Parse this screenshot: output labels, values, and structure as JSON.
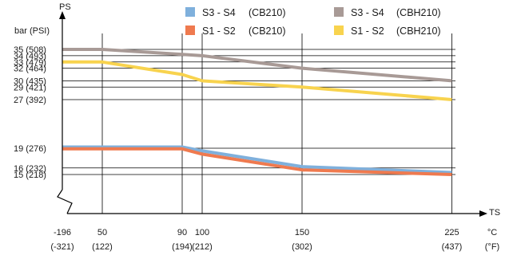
{
  "chart_data": {
    "type": "line",
    "title": "",
    "ylabel": "PS",
    "y_unit_label": "bar (PSI)",
    "xlabel": "TS",
    "x_unit_label_c": "°C",
    "x_unit_label_f": "(°F)",
    "xlim": [
      -196,
      225
    ],
    "ylim": [
      0,
      40
    ],
    "grid": true,
    "legend_position": "top",
    "x_ticks": [
      {
        "value": -196,
        "c": "-196",
        "f": "(-321)"
      },
      {
        "value": 50,
        "c": "50",
        "f": "(122)"
      },
      {
        "value": 90,
        "c": "90",
        "f": "(194)"
      },
      {
        "value": 100,
        "c": "100",
        "f": "(212)"
      },
      {
        "value": 150,
        "c": "150",
        "f": "(302)"
      },
      {
        "value": 225,
        "c": "225",
        "f": "(437)"
      }
    ],
    "y_ticks": [
      {
        "value": 35,
        "label": "35  (508)"
      },
      {
        "value": 34,
        "label": "34  (493)"
      },
      {
        "value": 33,
        "label": "33  (479)"
      },
      {
        "value": 32,
        "label": "32  (464)"
      },
      {
        "value": 30,
        "label": "30  (435)"
      },
      {
        "value": 29,
        "label": "29  (421)"
      },
      {
        "value": 27,
        "label": "27  (392)"
      },
      {
        "value": 19,
        "label": "19  (276)"
      },
      {
        "value": 16,
        "label": "16  (232)"
      },
      {
        "value": 15,
        "label": "15  (218)"
      }
    ],
    "series": [
      {
        "name": "S3 - S4",
        "note": "(CB210)",
        "color": "#7fb0dc",
        "x": [
          -196,
          90,
          100,
          150,
          225
        ],
        "y": [
          19.2,
          19.2,
          18.6,
          16.2,
          15.3
        ]
      },
      {
        "name": "S1 - S2",
        "note": "(CB210)",
        "color": "#ef7a4f",
        "x": [
          -196,
          90,
          100,
          150,
          225
        ],
        "y": [
          18.9,
          18.9,
          18.1,
          15.7,
          15.0
        ]
      },
      {
        "name": "S3 - S4",
        "note": "(CBH210)",
        "color": "#a89a96",
        "x": [
          -196,
          50,
          90,
          100,
          150,
          225
        ],
        "y": [
          35,
          35,
          34.2,
          34,
          32,
          30
        ]
      },
      {
        "name": "S1 - S2",
        "note": "(CBH210)",
        "color": "#f8d34e",
        "x": [
          -196,
          50,
          90,
          100,
          150,
          225
        ],
        "y": [
          33,
          33,
          31,
          30,
          29,
          27
        ]
      }
    ]
  }
}
